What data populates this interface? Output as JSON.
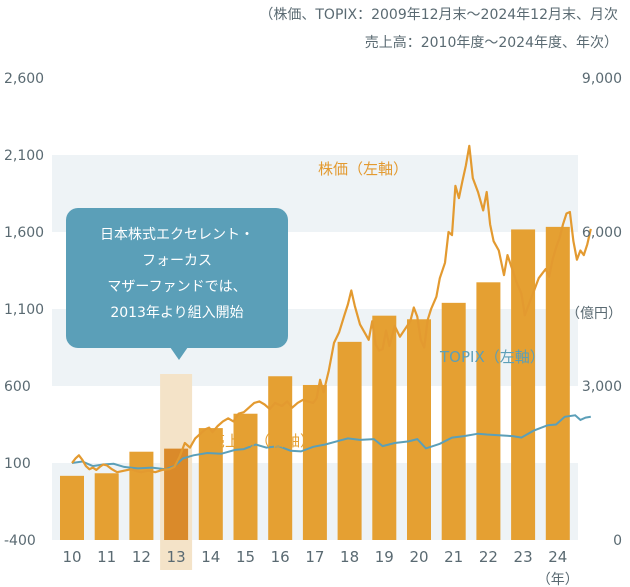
{
  "notes": {
    "line1": "（株価、TOPIX：2009年12月末〜2024年12月末、月次",
    "line2": "売上高：2010年度〜2024年度、年次）"
  },
  "callout": {
    "lines": [
      "日本株式エクセレント・",
      "フォーカス",
      "マザーファンドでは、",
      "2013年より組入開始"
    ]
  },
  "colors": {
    "stock_line": "#e39a30",
    "topix_line": "#5b9fb8",
    "bars": "#e5a032",
    "bar_highlight": "#da8a2a",
    "highlight_band": "#f4e3c8",
    "grid_band": "#eef3f6",
    "axis_text": "#5a6a72",
    "callout_bg": "#5b9fb8"
  },
  "chart_data": {
    "type": "bar+line",
    "x_label": "（年）",
    "categories": [
      "10",
      "11",
      "12",
      "13",
      "14",
      "15",
      "16",
      "17",
      "18",
      "19",
      "20",
      "21",
      "22",
      "23",
      "24"
    ],
    "highlight_category": "13",
    "left_axis": {
      "ticks": [
        "2,600",
        "2,100",
        "1,600",
        "1,100",
        "600",
        "100",
        "-400"
      ],
      "ylim": [
        -400,
        2600
      ]
    },
    "right_axis": {
      "unit": "（億円）",
      "ticks": [
        "9,000",
        "6,000",
        "3,000",
        "0"
      ],
      "ylim": [
        0,
        9000
      ]
    },
    "series": [
      {
        "name": "売上高（右軸）",
        "kind": "bar",
        "axis": "right",
        "values": [
          1250,
          1300,
          1720,
          1780,
          2180,
          2460,
          3190,
          3020,
          3860,
          4370,
          4300,
          4620,
          5020,
          6050,
          6100
        ]
      },
      {
        "name": "株価（左軸）",
        "kind": "line",
        "axis": "left",
        "points": [
          [
            2010.0,
            100
          ],
          [
            2010.1,
            130
          ],
          [
            2010.2,
            150
          ],
          [
            2010.3,
            120
          ],
          [
            2010.4,
            80
          ],
          [
            2010.5,
            60
          ],
          [
            2010.6,
            70
          ],
          [
            2010.7,
            55
          ],
          [
            2010.8,
            75
          ],
          [
            2010.9,
            90
          ],
          [
            2011.0,
            85
          ],
          [
            2011.15,
            60
          ],
          [
            2011.3,
            40
          ],
          [
            2011.5,
            50
          ],
          [
            2011.7,
            60
          ],
          [
            2011.9,
            45
          ],
          [
            2012.0,
            40
          ],
          [
            2012.2,
            50
          ],
          [
            2012.4,
            40
          ],
          [
            2012.6,
            55
          ],
          [
            2012.8,
            60
          ],
          [
            2012.95,
            75
          ],
          [
            2013.1,
            140
          ],
          [
            2013.25,
            230
          ],
          [
            2013.4,
            200
          ],
          [
            2013.55,
            260
          ],
          [
            2013.7,
            290
          ],
          [
            2013.85,
            320
          ],
          [
            2013.95,
            330
          ],
          [
            2014.05,
            300
          ],
          [
            2014.2,
            340
          ],
          [
            2014.35,
            370
          ],
          [
            2014.5,
            390
          ],
          [
            2014.65,
            370
          ],
          [
            2014.8,
            420
          ],
          [
            2014.95,
            430
          ],
          [
            2015.1,
            460
          ],
          [
            2015.25,
            490
          ],
          [
            2015.4,
            500
          ],
          [
            2015.55,
            480
          ],
          [
            2015.7,
            450
          ],
          [
            2015.85,
            490
          ],
          [
            2015.95,
            480
          ],
          [
            2016.05,
            470
          ],
          [
            2016.2,
            500
          ],
          [
            2016.35,
            460
          ],
          [
            2016.5,
            490
          ],
          [
            2016.65,
            510
          ],
          [
            2016.8,
            500
          ],
          [
            2016.95,
            490
          ],
          [
            2017.05,
            520
          ],
          [
            2017.15,
            640
          ],
          [
            2017.25,
            560
          ],
          [
            2017.4,
            700
          ],
          [
            2017.55,
            880
          ],
          [
            2017.7,
            950
          ],
          [
            2017.85,
            1060
          ],
          [
            2017.95,
            1130
          ],
          [
            2018.05,
            1220
          ],
          [
            2018.15,
            1120
          ],
          [
            2018.3,
            1000
          ],
          [
            2018.45,
            940
          ],
          [
            2018.55,
            900
          ],
          [
            2018.65,
            1020
          ],
          [
            2018.75,
            870
          ],
          [
            2018.85,
            830
          ],
          [
            2018.95,
            840
          ],
          [
            2019.05,
            960
          ],
          [
            2019.15,
            860
          ],
          [
            2019.3,
            990
          ],
          [
            2019.45,
            920
          ],
          [
            2019.6,
            970
          ],
          [
            2019.75,
            1020
          ],
          [
            2019.85,
            1110
          ],
          [
            2019.95,
            1050
          ],
          [
            2020.05,
            900
          ],
          [
            2020.15,
            850
          ],
          [
            2020.25,
            1030
          ],
          [
            2020.35,
            1100
          ],
          [
            2020.5,
            1180
          ],
          [
            2020.6,
            1300
          ],
          [
            2020.75,
            1400
          ],
          [
            2020.85,
            1600
          ],
          [
            2020.95,
            1580
          ],
          [
            2021.05,
            1900
          ],
          [
            2021.15,
            1820
          ],
          [
            2021.25,
            1930
          ],
          [
            2021.35,
            2030
          ],
          [
            2021.45,
            2160
          ],
          [
            2021.55,
            1950
          ],
          [
            2021.7,
            1860
          ],
          [
            2021.85,
            1740
          ],
          [
            2021.95,
            1860
          ],
          [
            2022.05,
            1650
          ],
          [
            2022.15,
            1540
          ],
          [
            2022.3,
            1480
          ],
          [
            2022.45,
            1320
          ],
          [
            2022.55,
            1450
          ],
          [
            2022.7,
            1350
          ],
          [
            2022.8,
            1280
          ],
          [
            2022.95,
            1200
          ],
          [
            2023.05,
            1060
          ],
          [
            2023.15,
            1120
          ],
          [
            2023.3,
            1210
          ],
          [
            2023.45,
            1300
          ],
          [
            2023.55,
            1330
          ],
          [
            2023.65,
            1360
          ],
          [
            2023.75,
            1310
          ],
          [
            2023.85,
            1420
          ],
          [
            2023.95,
            1500
          ],
          [
            2024.05,
            1560
          ],
          [
            2024.15,
            1650
          ],
          [
            2024.25,
            1720
          ],
          [
            2024.35,
            1730
          ],
          [
            2024.45,
            1540
          ],
          [
            2024.55,
            1420
          ],
          [
            2024.65,
            1480
          ],
          [
            2024.75,
            1450
          ],
          [
            2024.85,
            1520
          ],
          [
            2024.95,
            1620
          ]
        ]
      },
      {
        "name": "TOPIX（左軸）",
        "kind": "line",
        "axis": "left",
        "points": [
          [
            2010.0,
            100
          ],
          [
            2010.3,
            110
          ],
          [
            2010.6,
            80
          ],
          [
            2010.9,
            90
          ],
          [
            2011.2,
            95
          ],
          [
            2011.5,
            75
          ],
          [
            2011.9,
            65
          ],
          [
            2012.3,
            70
          ],
          [
            2012.7,
            60
          ],
          [
            2012.95,
            80
          ],
          [
            2013.2,
            130
          ],
          [
            2013.5,
            150
          ],
          [
            2013.9,
            165
          ],
          [
            2014.3,
            160
          ],
          [
            2014.7,
            185
          ],
          [
            2014.95,
            190
          ],
          [
            2015.3,
            220
          ],
          [
            2015.6,
            200
          ],
          [
            2015.95,
            210
          ],
          [
            2016.3,
            180
          ],
          [
            2016.6,
            175
          ],
          [
            2016.95,
            205
          ],
          [
            2017.3,
            220
          ],
          [
            2017.7,
            245
          ],
          [
            2017.95,
            260
          ],
          [
            2018.3,
            250
          ],
          [
            2018.7,
            255
          ],
          [
            2018.95,
            210
          ],
          [
            2019.3,
            230
          ],
          [
            2019.7,
            240
          ],
          [
            2019.95,
            255
          ],
          [
            2020.2,
            195
          ],
          [
            2020.6,
            225
          ],
          [
            2020.95,
            265
          ],
          [
            2021.3,
            275
          ],
          [
            2021.7,
            290
          ],
          [
            2021.95,
            285
          ],
          [
            2022.3,
            280
          ],
          [
            2022.7,
            275
          ],
          [
            2022.95,
            265
          ],
          [
            2023.3,
            310
          ],
          [
            2023.7,
            345
          ],
          [
            2023.95,
            350
          ],
          [
            2024.2,
            400
          ],
          [
            2024.5,
            410
          ],
          [
            2024.65,
            380
          ],
          [
            2024.8,
            395
          ],
          [
            2024.95,
            400
          ]
        ]
      }
    ]
  }
}
